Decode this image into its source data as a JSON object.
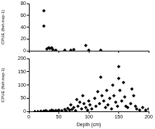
{
  "chart_data": [
    {
      "type": "scatter",
      "y_label": "CPUE (fish.trap-1)",
      "color": "#000000",
      "marker": "diamond",
      "grid": false,
      "tick_labels": "y",
      "x": [
        25,
        25,
        30,
        33,
        35,
        38,
        40,
        45,
        60,
        70,
        75,
        95,
        100,
        120
      ],
      "values": [
        68,
        42,
        3,
        5,
        4,
        5,
        2,
        1,
        1,
        1,
        2,
        9,
        1,
        1
      ],
      "xlim": [
        0,
        200
      ],
      "xticks": [
        0,
        50,
        100,
        150,
        200
      ],
      "ylim": [
        0,
        80
      ],
      "yticks": [
        0,
        20,
        40,
        60,
        80
      ]
    },
    {
      "type": "scatter",
      "x_label": "Depth (cm)",
      "y_label": "CPUE (fish.trap-1)",
      "color": "#000000",
      "marker": "diamond",
      "grid": false,
      "x": [
        10,
        15,
        20,
        25,
        28,
        30,
        35,
        38,
        40,
        42,
        45,
        48,
        50,
        55,
        60,
        62,
        65,
        68,
        70,
        72,
        75,
        78,
        80,
        82,
        85,
        88,
        90,
        92,
        95,
        98,
        100,
        102,
        105,
        110,
        112,
        115,
        118,
        120,
        122,
        125,
        128,
        130,
        132,
        135,
        138,
        140,
        142,
        145,
        148,
        150,
        150,
        152,
        155,
        158,
        160,
        162,
        165,
        170,
        172,
        175,
        178,
        180,
        185,
        190,
        195,
        200
      ],
      "values": [
        0,
        0,
        1,
        2,
        3,
        1,
        2,
        5,
        3,
        1,
        4,
        2,
        5,
        3,
        8,
        2,
        12,
        5,
        25,
        8,
        15,
        3,
        45,
        20,
        35,
        10,
        60,
        30,
        15,
        5,
        40,
        25,
        10,
        50,
        20,
        75,
        30,
        130,
        60,
        40,
        15,
        80,
        25,
        50,
        10,
        100,
        60,
        35,
        20,
        170,
        125,
        80,
        40,
        110,
        55,
        20,
        15,
        30,
        85,
        60,
        20,
        10,
        5,
        15,
        5,
        10
      ],
      "xlim": [
        0,
        200
      ],
      "xticks": [
        0,
        50,
        100,
        150,
        200
      ],
      "ylim": [
        0,
        200
      ],
      "yticks": [
        0,
        50,
        100,
        150,
        200
      ]
    }
  ]
}
